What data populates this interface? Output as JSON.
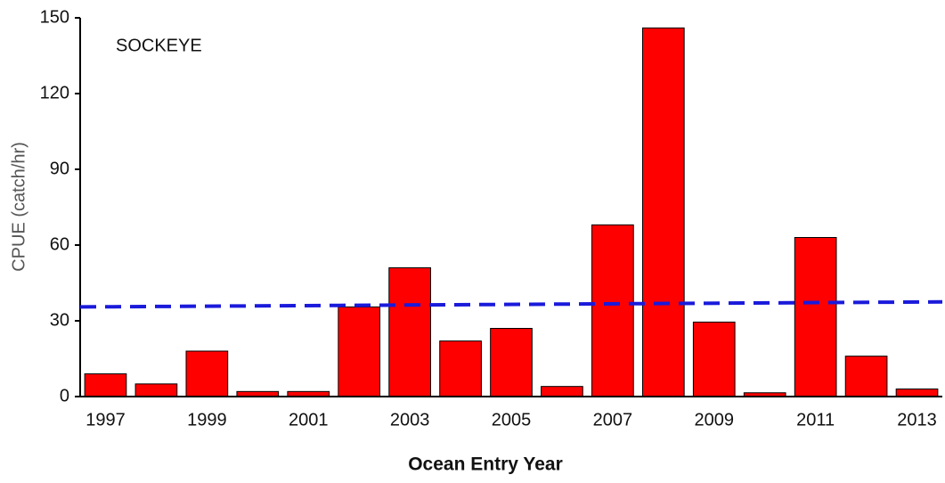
{
  "chart_data": {
    "type": "bar",
    "annotation": "SOCKEYE",
    "xlabel": "Ocean Entry Year",
    "ylabel": "CPUE (catch/hr)",
    "categories": [
      "1997",
      null,
      "1999",
      null,
      "2001",
      null,
      "2003",
      null,
      "2005",
      null,
      "2007",
      null,
      "2009",
      null,
      "2011",
      null,
      "2013"
    ],
    "values": [
      9,
      5,
      18,
      2,
      2,
      35.5,
      51,
      22,
      27,
      4,
      68,
      146,
      29.5,
      1.5,
      63,
      16,
      3
    ],
    "color": "#ff0000",
    "ylim": [
      0,
      150
    ],
    "yticks": [
      0,
      30,
      60,
      90,
      120,
      150
    ],
    "reference_line": {
      "values": [
        35.5,
        37.5
      ],
      "color": "#1a1adb"
    }
  }
}
